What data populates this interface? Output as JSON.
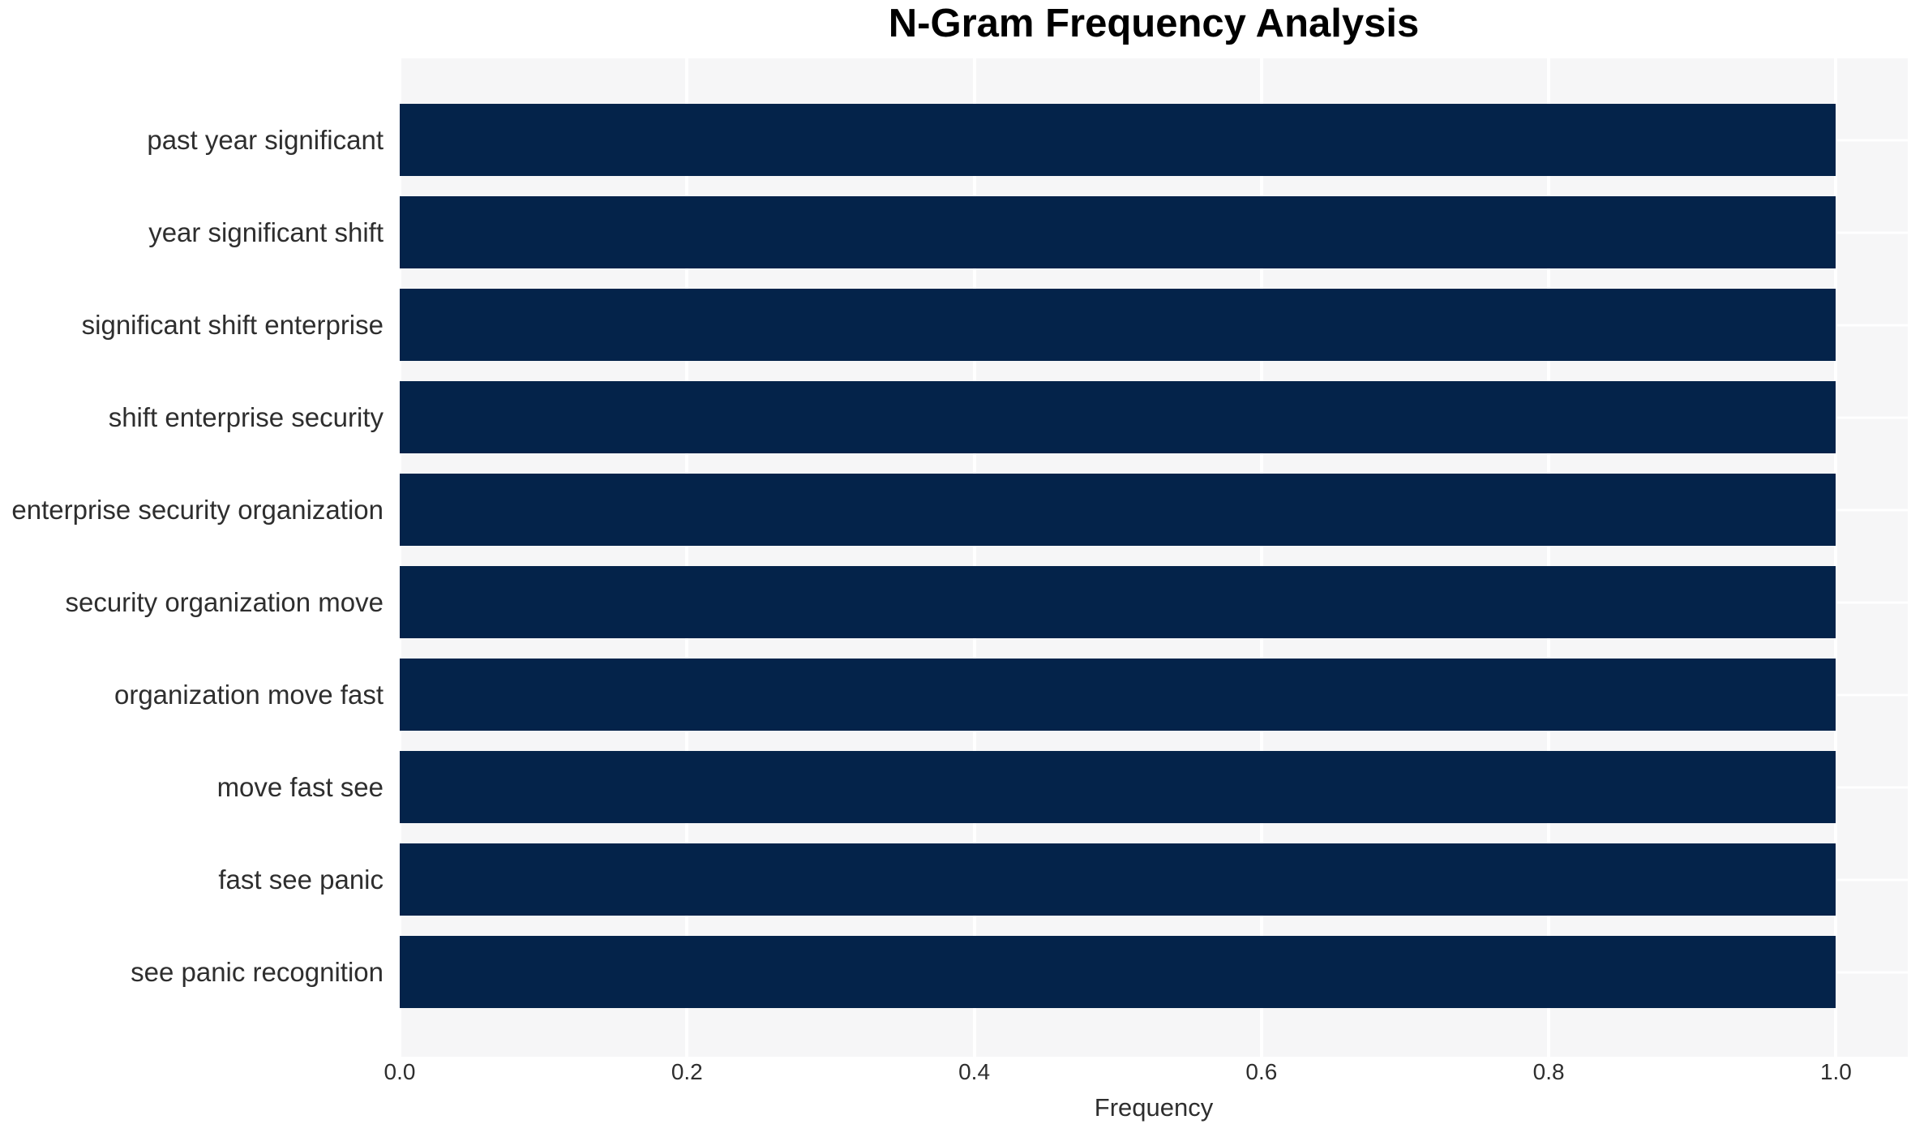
{
  "chart_data": {
    "type": "bar",
    "orientation": "horizontal",
    "title": "N-Gram Frequency Analysis",
    "xlabel": "Frequency",
    "ylabel": "",
    "categories": [
      "past year significant",
      "year significant shift",
      "significant shift enterprise",
      "shift enterprise security",
      "enterprise security organization",
      "security organization move",
      "organization move fast",
      "move fast see",
      "fast see panic",
      "see panic recognition"
    ],
    "values": [
      1.0,
      1.0,
      1.0,
      1.0,
      1.0,
      1.0,
      1.0,
      1.0,
      1.0,
      1.0
    ],
    "xlim": [
      0,
      1.05
    ],
    "x_ticks": [
      0.0,
      0.2,
      0.4,
      0.6,
      0.8,
      1.0
    ],
    "x_tick_labels": [
      "0.0",
      "0.2",
      "0.4",
      "0.6",
      "0.8",
      "1.0"
    ],
    "grid": true,
    "legend_position": "none",
    "colors": {
      "bar": "#04234a",
      "plot_bg": "#f6f6f7",
      "grid": "#ffffff",
      "tick_text": "#2e2e2e",
      "title_text": "#000000"
    }
  }
}
